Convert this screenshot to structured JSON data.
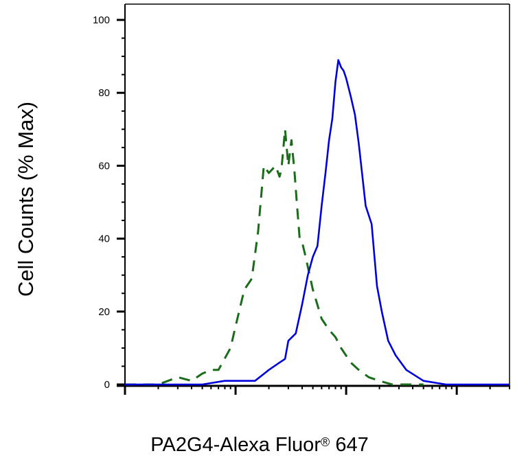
{
  "chart_data": {
    "type": "line",
    "title": "",
    "xlabel": "PA2G4-Alexa Fluor",
    "xlabel_mark": "®",
    "xlabel_suffix": "647",
    "ylabel": "Cell Counts (% Max)",
    "xscale": "log",
    "xlim": [
      10,
      30000
    ],
    "ylim": [
      0,
      100
    ],
    "y_ticks": [
      0,
      20,
      40,
      60,
      80,
      100
    ],
    "y_tick_labels": [
      "0",
      "20",
      "40",
      "60",
      "80",
      "100"
    ],
    "x_tick_labels": [],
    "grid": false,
    "legend": "none",
    "series": [
      {
        "style": "dashed",
        "color": "#1a6b1a",
        "x": [
          10,
          20,
          30,
          40,
          50,
          60,
          70,
          90,
          100,
          120,
          140,
          160,
          180,
          200,
          230,
          250,
          260,
          280,
          300,
          320,
          340,
          360,
          380,
          400,
          430,
          500,
          600,
          700,
          800,
          900,
          1100,
          1300,
          1600,
          2000,
          2600,
          3500,
          5000
        ],
        "y": [
          0,
          0,
          2,
          1,
          3,
          4,
          4,
          10,
          16,
          26,
          29,
          42,
          60,
          58,
          60,
          57,
          59,
          70,
          60,
          67,
          59,
          49,
          40,
          39,
          35,
          26,
          18,
          15,
          13,
          10,
          6,
          4,
          2,
          1,
          0,
          0,
          0
        ]
      },
      {
        "style": "solid",
        "color": "#0000dd",
        "x": [
          10,
          50,
          80,
          100,
          150,
          200,
          250,
          280,
          300,
          350,
          400,
          450,
          500,
          550,
          600,
          650,
          700,
          750,
          800,
          850,
          900,
          950,
          1000,
          1100,
          1200,
          1300,
          1500,
          1700,
          1900,
          2100,
          2400,
          2800,
          3500,
          5000,
          8000,
          15000,
          30000
        ],
        "y": [
          0,
          0,
          1,
          1,
          1,
          4,
          6,
          7,
          12,
          14,
          22,
          30,
          35,
          38,
          49,
          58,
          67,
          73,
          83,
          89,
          87,
          86,
          84,
          79,
          74,
          66,
          49,
          44,
          27,
          20,
          12,
          8,
          4,
          1,
          0,
          0,
          0
        ]
      }
    ]
  }
}
